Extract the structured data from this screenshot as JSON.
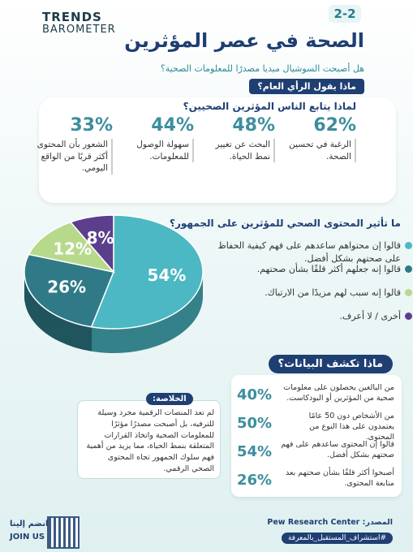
{
  "header": {
    "logo_top": "TRENDS",
    "logo_bottom": "BAROMETER",
    "badge": "2-2",
    "title": "الصحة في عصر المؤثرين",
    "subtitle": "هل أصبحت السوشيال ميديا مصدرًا للمعلومات الصحية؟",
    "label": "ماذا يقول الرأي العام؟"
  },
  "reasons": {
    "question": "لماذا يتابع الناس المؤثرين الصحيين؟",
    "items": [
      {
        "percent": "62%",
        "text": "الرغبة في تحسين الصحة."
      },
      {
        "percent": "48%",
        "text": "البحث عن تغيير نمط الحياة."
      },
      {
        "percent": "44%",
        "text": "سهولة الوصول للمعلومات."
      },
      {
        "percent": "33%",
        "text": "الشعور بأن المحتوى أكثر قربًا من الواقع اليومي."
      }
    ]
  },
  "chart_data": {
    "type": "pie",
    "title": "ما تأثير المحتوى الصحي للمؤثرين على الجمهور؟",
    "categories": [
      "قالوا إن محتواهم ساعدهم على فهم كيفية الحفاظ على صحتهم بشكل أفضل.",
      "قالوا إنه جعلهم أكثر قلقًا بشأن صحتهم.",
      "قالوا إنه سبب لهم مزيدًا من الارتباك.",
      "أخرى / لا أعرف."
    ],
    "values": [
      54,
      26,
      12,
      8
    ],
    "value_labels": [
      "54%",
      "26%",
      "12%",
      "8%"
    ],
    "colors": [
      "#4cb8c4",
      "#2f7a86",
      "#b7d98b",
      "#5b3f8c"
    ]
  },
  "findings": {
    "title": "ماذا تكشف البيانات؟",
    "rows": [
      {
        "percent": "40%",
        "text": "من البالغين يحصلون على معلومات صحية من المؤثرين أو البودكاست."
      },
      {
        "percent": "50%",
        "text": "من الأشخاص دون 50 عامًا يعتمدون على هذا النوع من المحتوى."
      },
      {
        "percent": "54%",
        "text": "قالوا إن المحتوى ساعدهم على فهم صحتهم بشكل أفضل."
      },
      {
        "percent": "26%",
        "text": "أصبحوا أكثر قلقًا بشأن صحتهم بعد متابعة المحتوى."
      }
    ]
  },
  "conclusion": {
    "title": "الخلاصة:",
    "text": "لم تعد المنصات الرقمية مجرد وسيلة للترفيه، بل أصبحت مصدرًا مؤثرًا للمعلومات الصحية واتخاذ القرارات المتعلقة بنمط الحياة، مما يزيد من أهمية فهم سلوك الجمهور تجاه المحتوى الصحي الرقمي."
  },
  "footer": {
    "source": "المصدر: Pew Research Center",
    "hashtag": "#استشراف_المستقبل_بالمعرفة",
    "join_ar": "انضم إلينا",
    "join_en": "JOIN US"
  }
}
